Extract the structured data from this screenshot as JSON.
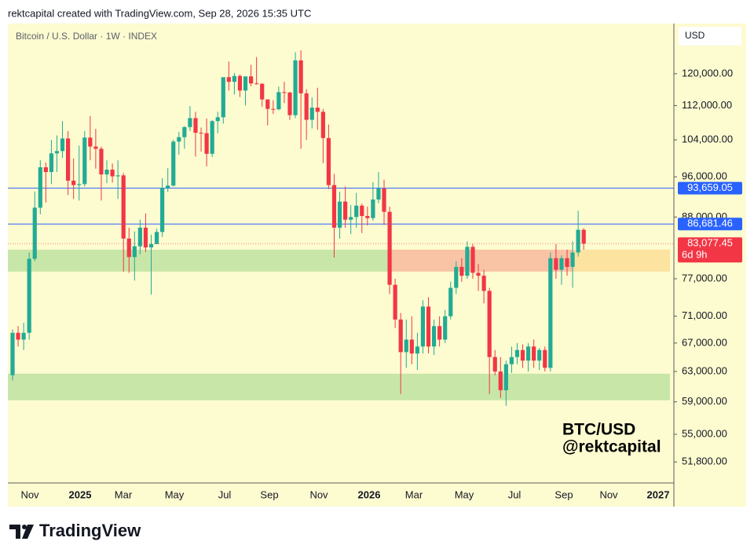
{
  "header": {
    "credit": "rektcapital created with TradingView.com, Sep 28, 2026 15:35 UTC"
  },
  "chart_data": {
    "type": "candlestick",
    "title": "Bitcoin / U.S. Dollar · 1W · INDEX",
    "currency": "USD",
    "log_scale": true,
    "ylim": [
      49500,
      134200
    ],
    "yticks": [
      {
        "value": 51800,
        "label": "51,800.00"
      },
      {
        "value": 55000,
        "label": "55,000.00"
      },
      {
        "value": 59000,
        "label": "59,000.00"
      },
      {
        "value": 63000,
        "label": "63,000.00"
      },
      {
        "value": 67000,
        "label": "67,000.00"
      },
      {
        "value": 71000,
        "label": "71,000.00"
      },
      {
        "value": 77000,
        "label": "77,000.00"
      },
      {
        "value": 88000,
        "label": "88,000.00"
      },
      {
        "value": 96000,
        "label": "96,000.00"
      },
      {
        "value": 104000,
        "label": "104,000.00"
      },
      {
        "value": 112000,
        "label": "112,000.00"
      },
      {
        "value": 120000,
        "label": "120,000.00"
      }
    ],
    "x_labels": [
      "Nov",
      "2025",
      "Mar",
      "May",
      "Jul",
      "Sep",
      "Nov",
      "2026",
      "Mar",
      "May",
      "Jul",
      "Sep",
      "Nov",
      "2027"
    ],
    "up_color": "#22ab94",
    "down_color": "#f23645",
    "open": [
      62500,
      68500,
      67500,
      68500,
      80400,
      89800,
      98000,
      97000,
      101000,
      101500,
      104300,
      95200,
      94300,
      94500,
      104500,
      102500,
      102000,
      96500,
      97500,
      96100,
      96300,
      84000,
      80700,
      82600,
      86000,
      82400,
      83000,
      85200,
      93700,
      94200,
      103600,
      104600,
      106900,
      109000,
      105600,
      105500,
      100900,
      108300,
      109200,
      119100,
      117900,
      119400,
      115700,
      119300,
      117500,
      117400,
      113500,
      111200,
      111100,
      115300,
      115200,
      109700,
      123500,
      115000,
      108600,
      111500,
      110500,
      104400,
      94300,
      86000,
      91000,
      87500,
      88000,
      90200,
      88200,
      87800,
      91400,
      93600,
      89000,
      76000,
      70500,
      65700,
      67500,
      65500,
      66500,
      72500,
      66500,
      69500,
      67500,
      71000,
      75500,
      79000,
      77500,
      82500,
      78000,
      77500,
      75000,
      65000,
      63000,
      60500,
      64000,
      65000,
      66000,
      64500,
      66500,
      64500,
      66000,
      63500,
      80500,
      78500,
      80500,
      79000,
      81500,
      85600
    ],
    "high": [
      69000,
      69500,
      70000,
      81500,
      93000,
      99500,
      99000,
      104000,
      105000,
      108300,
      106000,
      99900,
      102700,
      106000,
      109500,
      106500,
      102500,
      99500,
      98800,
      99500,
      96800,
      86000,
      85300,
      87500,
      88700,
      84700,
      85800,
      95700,
      97800,
      104000,
      105800,
      107100,
      111900,
      110500,
      106800,
      108900,
      108500,
      110500,
      118800,
      123200,
      120200,
      119800,
      119300,
      122300,
      124400,
      117600,
      113500,
      113300,
      116700,
      117900,
      115400,
      125700,
      126200,
      116000,
      114000,
      116400,
      111200,
      107500,
      96600,
      92900,
      94000,
      90300,
      92700,
      90600,
      90000,
      94900,
      97000,
      95400,
      90000,
      77000,
      71500,
      70500,
      71000,
      68500,
      73500,
      74000,
      70500,
      71000,
      72000,
      76500,
      80000,
      80500,
      83500,
      83000,
      79500,
      78500,
      75500,
      66000,
      65000,
      64500,
      66500,
      67000,
      66800,
      67000,
      67500,
      66300,
      66500,
      81500,
      83000,
      81000,
      82000,
      83500,
      89200,
      85900
    ],
    "low": [
      61800,
      66500,
      66000,
      67500,
      80000,
      88500,
      90800,
      94500,
      97000,
      100000,
      92300,
      91500,
      91200,
      94000,
      99500,
      97700,
      91200,
      94700,
      94800,
      91500,
      78200,
      78000,
      76700,
      81200,
      81600,
      74400,
      83000,
      84300,
      92900,
      94000,
      100700,
      102000,
      106000,
      100300,
      101400,
      98200,
      100200,
      105500,
      107700,
      115700,
      114700,
      114100,
      112000,
      116800,
      117200,
      111700,
      107300,
      110000,
      110900,
      112600,
      108600,
      109000,
      102000,
      104000,
      106600,
      106300,
      98900,
      93500,
      80600,
      84000,
      86000,
      84800,
      86000,
      85000,
      86400,
      87300,
      90700,
      86500,
      74500,
      69200,
      60000,
      63500,
      64000,
      63200,
      65500,
      65500,
      65300,
      66500,
      67000,
      70500,
      74500,
      76500,
      77000,
      77000,
      75000,
      73000,
      60000,
      62500,
      59500,
      58500,
      62800,
      64000,
      63500,
      63000,
      63500,
      63200,
      63000,
      63000,
      77000,
      76000,
      77500,
      75500,
      80800,
      82000
    ],
    "close": [
      68500,
      67500,
      68500,
      80400,
      89800,
      98000,
      97000,
      101000,
      101500,
      104300,
      95200,
      94300,
      94500,
      104500,
      102500,
      102000,
      96500,
      97500,
      96100,
      96300,
      84000,
      80700,
      82600,
      86000,
      82400,
      83000,
      85200,
      93700,
      94200,
      103600,
      104600,
      106900,
      109000,
      105600,
      105500,
      100900,
      108300,
      109200,
      119100,
      117900,
      119400,
      115700,
      119300,
      117500,
      117400,
      113500,
      111200,
      111100,
      115300,
      115200,
      109700,
      123500,
      115000,
      108600,
      111500,
      110500,
      104400,
      94300,
      86000,
      91000,
      87500,
      88000,
      90200,
      88200,
      87800,
      91400,
      93600,
      89000,
      76000,
      70500,
      65700,
      67500,
      65500,
      66500,
      72500,
      66500,
      69500,
      67500,
      71000,
      75500,
      79000,
      77500,
      82500,
      78000,
      77500,
      75000,
      65000,
      63000,
      60500,
      64000,
      65000,
      66000,
      64500,
      66500,
      64500,
      66000,
      63500,
      80500,
      78500,
      80500,
      79000,
      81500,
      85600,
      83077.45
    ],
    "last_price_label": "83,077.45",
    "countdown": "6d 9h",
    "levels": [
      {
        "value": 93659.05,
        "label": "93,659.05",
        "color": "#2962ff"
      },
      {
        "value": 86681.46,
        "label": "86,681.46",
        "color": "#2962ff"
      }
    ],
    "zones": [
      {
        "from": 78200,
        "to": 82000,
        "color": "#c8e6a8"
      },
      {
        "from": 78200,
        "to": 82000,
        "color": "#f9c4a6"
      },
      {
        "from": 78200,
        "to": 82000,
        "color": "#fde3a0"
      },
      {
        "from": 59200,
        "to": 62700,
        "color": "#c8e6a8"
      }
    ],
    "annotation": [
      "BTC/USD",
      "@rektcapital"
    ]
  },
  "footer": {
    "brand": "TradingView"
  }
}
